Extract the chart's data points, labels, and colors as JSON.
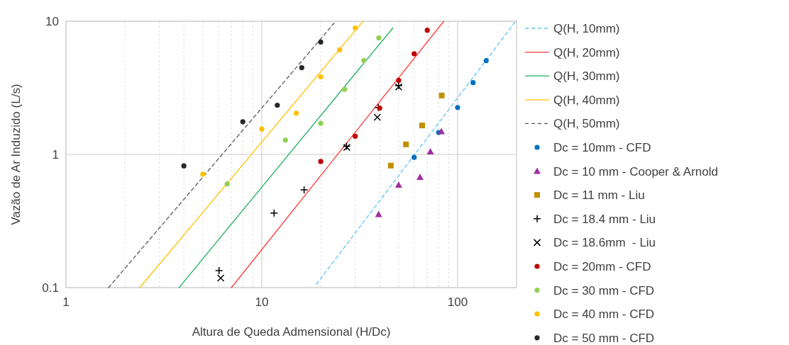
{
  "chart_data": {
    "type": "scatter",
    "xlabel": "Altura de Queda Admensional (H/Dc)",
    "ylabel": "Vazão de Ar Induzido (L/s)",
    "log": "xy",
    "xlim": [
      1,
      200
    ],
    "ylim": [
      0.1,
      10
    ],
    "xticks": [
      1,
      10,
      100
    ],
    "yticks": [
      0.1,
      1,
      10
    ],
    "grid": true,
    "legend": "right",
    "series": [
      {
        "name": "Q(H, 10mm)",
        "type": "line",
        "color": "#5bc8f5",
        "line_style": "dashed",
        "marker": "none",
        "x": [
          19,
          198
        ],
        "values": [
          0.106,
          10
        ]
      },
      {
        "name": "Q(H, 20mm)",
        "type": "line",
        "color": "#ff3b3b",
        "line_style": "solid",
        "marker": "none",
        "x": [
          7,
          85
        ],
        "values": [
          0.1,
          10
        ]
      },
      {
        "name": "Q(H, 30mm)",
        "type": "line",
        "color": "#22b060",
        "line_style": "solid",
        "marker": "none",
        "x": [
          3.78,
          46.7
        ],
        "values": [
          0.1,
          8.9
        ]
      },
      {
        "name": "Q(H, 40mm)",
        "type": "line",
        "color": "#ffc000",
        "line_style": "solid",
        "marker": "none",
        "x": [
          2.38,
          32.9
        ],
        "values": [
          0.1,
          10
        ]
      },
      {
        "name": "Q(H, 50mm)",
        "type": "line",
        "color": "#595959",
        "line_style": "dashed",
        "marker": "none",
        "x": [
          1.65,
          23.4
        ],
        "values": [
          0.1,
          9.67
        ]
      },
      {
        "name": "Dc = 10mm - CFD",
        "color": "#0070c0",
        "marker": "circle",
        "x": [
          60,
          80,
          100,
          120,
          140
        ],
        "values": [
          0.95,
          1.46,
          2.25,
          3.46,
          5.06
        ]
      },
      {
        "name": "Dc = 10 mm - Cooper & Arnold",
        "color": "#a030a0",
        "marker": "triangle",
        "x": [
          39.5,
          50,
          64.3,
          72.6,
          82.6
        ],
        "values": [
          0.355,
          0.59,
          0.675,
          1.05,
          1.49
        ]
      },
      {
        "name": "Dc = 11 mm - Liu",
        "color": "#bf9000",
        "marker": "square",
        "x": [
          45.6,
          54.5,
          65.9,
          83
        ],
        "values": [
          0.825,
          1.19,
          1.65,
          2.77
        ]
      },
      {
        "name": "Dc = 18.4 mm - Liu",
        "color": "#000000",
        "marker": "cross",
        "x": [
          6.05,
          11.55,
          16.45,
          27.1,
          39.4,
          50
        ],
        "values": [
          0.134,
          0.363,
          0.542,
          1.15,
          2.25,
          3.29
        ]
      },
      {
        "name": "Dc = 18.6mm  - Liu",
        "color": "#000000",
        "marker": "x",
        "x": [
          6.17,
          27.2,
          38.9,
          50
        ],
        "values": [
          0.118,
          1.13,
          1.9,
          3.21
        ]
      },
      {
        "name": "Dc = 20mm - CFD",
        "color": "#c00000",
        "marker": "circle",
        "x": [
          20,
          30,
          40,
          50,
          60,
          70
        ],
        "values": [
          0.885,
          1.37,
          2.23,
          3.6,
          5.7,
          8.56
        ]
      },
      {
        "name": "Dc = 30 mm - CFD",
        "color": "#92d050",
        "marker": "circle",
        "x": [
          6.66,
          13.2,
          20,
          26.5,
          33.2,
          39.6
        ],
        "values": [
          0.6,
          1.28,
          1.71,
          3.08,
          5.08,
          7.5
        ]
      },
      {
        "name": "Dc = 40 mm - CFD",
        "color": "#ffc000",
        "marker": "circle",
        "x": [
          5,
          10,
          15,
          20,
          25,
          30
        ],
        "values": [
          0.71,
          1.55,
          2.04,
          3.82,
          6.1,
          8.9
        ]
      },
      {
        "name": "Dc = 50 mm - CFD",
        "color": "#262626",
        "marker": "circle",
        "x": [
          4,
          8,
          12,
          16,
          20
        ],
        "values": [
          0.82,
          1.76,
          2.34,
          4.48,
          6.98
        ]
      }
    ]
  }
}
